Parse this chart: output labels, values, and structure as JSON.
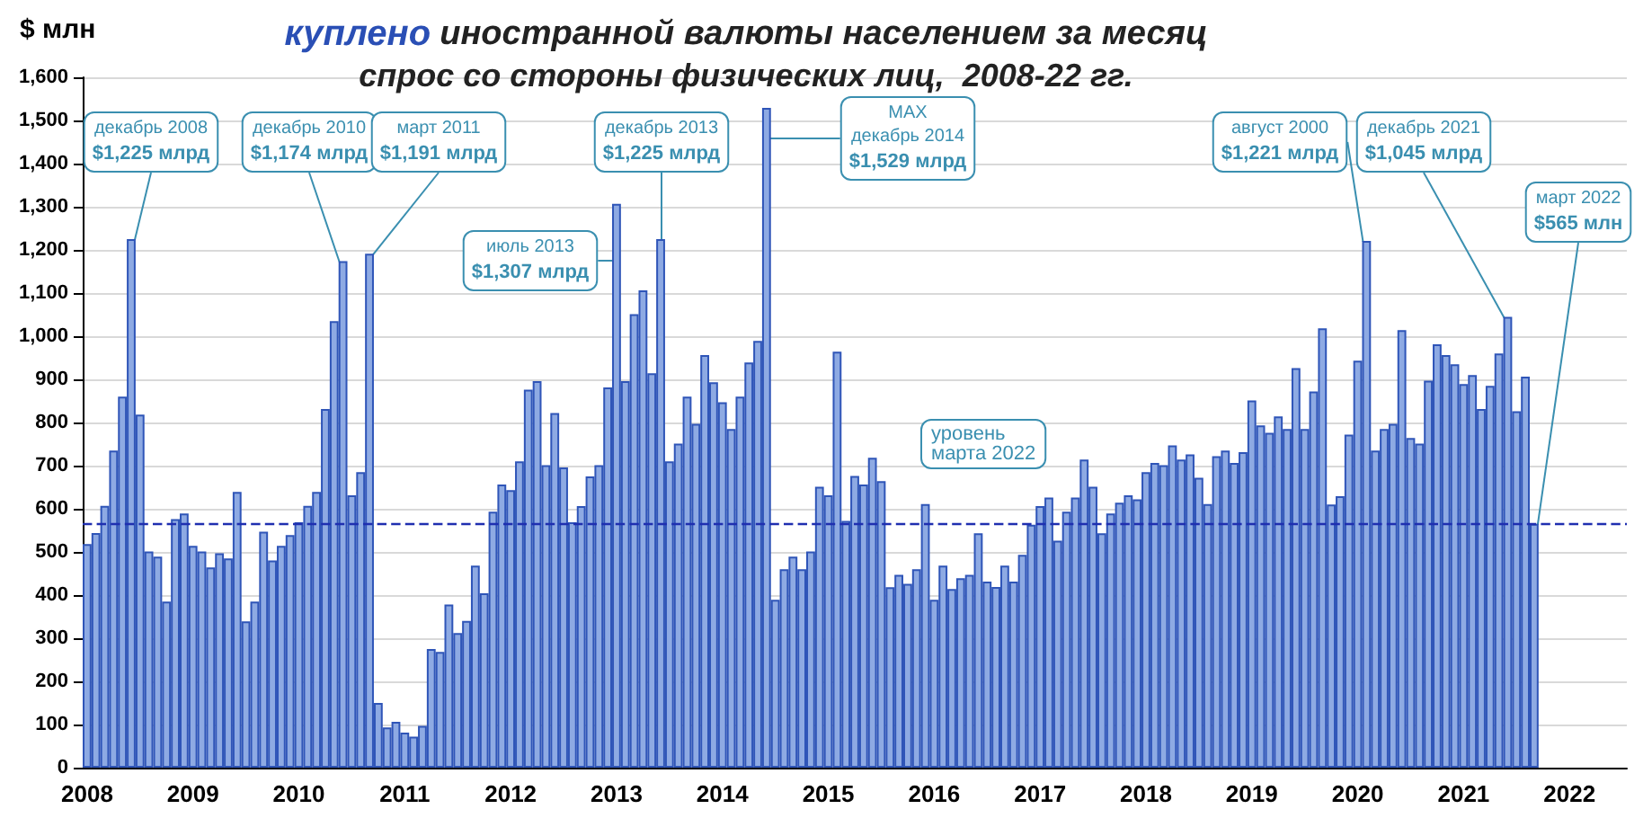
{
  "chart_data": {
    "type": "bar",
    "title": "куплено иностранной валюты населением за месяц",
    "subtitle": "спрос со стороны физических лиц,  2008-22 гг.",
    "ylabel": "$ млн",
    "categories": [
      "2008",
      null,
      null,
      null,
      null,
      null,
      null,
      null,
      null,
      null,
      null,
      null,
      "2009",
      null,
      null,
      null,
      null,
      null,
      null,
      null,
      null,
      null,
      null,
      null,
      "2010",
      null,
      null,
      null,
      null,
      null,
      null,
      null,
      null,
      null,
      null,
      null,
      "2011",
      null,
      null,
      null,
      null,
      null,
      null,
      null,
      null,
      null,
      null,
      null,
      "2012",
      null,
      null,
      null,
      null,
      null,
      null,
      null,
      null,
      null,
      null,
      null,
      "2013",
      null,
      null,
      null,
      null,
      null,
      null,
      null,
      null,
      null,
      null,
      null,
      "2014",
      null,
      null,
      null,
      null,
      null,
      null,
      null,
      null,
      null,
      null,
      null,
      "2015",
      null,
      null,
      null,
      null,
      null,
      null,
      null,
      null,
      null,
      null,
      null,
      "2016",
      null,
      null,
      null,
      null,
      null,
      null,
      null,
      null,
      null,
      null,
      null,
      "2017",
      null,
      null,
      null,
      null,
      null,
      null,
      null,
      null,
      null,
      null,
      null,
      "2018",
      null,
      null,
      null,
      null,
      null,
      null,
      null,
      null,
      null,
      null,
      null,
      "2019",
      null,
      null,
      null,
      null,
      null,
      null,
      null,
      null,
      null,
      null,
      null,
      "2020",
      null,
      null,
      null,
      null,
      null,
      null,
      null,
      null,
      null,
      null,
      null,
      "2021",
      null,
      null,
      null,
      null,
      null,
      null,
      null,
      null,
      null,
      null,
      null,
      "2022",
      null,
      null,
      null,
      null,
      null,
      null
    ],
    "values": [
      518,
      544,
      607,
      735,
      860,
      1225,
      818,
      501,
      489,
      385,
      576,
      589,
      514,
      501,
      464,
      497,
      485,
      639,
      339,
      385,
      547,
      480,
      514,
      539,
      569,
      607,
      639,
      831,
      1035,
      1174,
      631,
      685,
      1191,
      150,
      93,
      106,
      81,
      72,
      97,
      275,
      268,
      378,
      312,
      340,
      468,
      404,
      593,
      656,
      643,
      710,
      876,
      896,
      701,
      822,
      696,
      569,
      606,
      675,
      701,
      881,
      1307,
      896,
      1051,
      1106,
      914,
      1225,
      710,
      751,
      860,
      797,
      956,
      893,
      847,
      785,
      860,
      939,
      989,
      1529,
      389,
      460,
      489,
      460,
      501,
      651,
      631,
      964,
      572,
      676,
      656,
      718,
      664,
      418,
      447,
      426,
      460,
      611,
      389,
      468,
      414,
      439,
      447,
      543,
      431,
      419,
      468,
      431,
      493,
      563,
      606,
      626,
      526,
      593,
      626,
      714,
      651,
      543,
      589,
      614,
      631,
      622,
      685,
      706,
      701,
      747,
      714,
      726,
      672,
      611,
      722,
      735,
      706,
      731,
      851,
      793,
      776,
      814,
      785,
      926,
      785,
      872,
      1018,
      610,
      629,
      772,
      943,
      1221,
      735,
      785,
      797,
      1014,
      764,
      751,
      897,
      981,
      956,
      935,
      889,
      910,
      831,
      885,
      960,
      1045,
      826,
      906,
      565,
      null,
      null,
      null,
      null,
      null,
      null,
      null,
      null,
      null,
      null
    ],
    "value_labels": [
      null,
      null,
      null,
      null,
      null,
      "декабрь 2008\n$1,225 млрд",
      null,
      null,
      null,
      null,
      null,
      null,
      null,
      null,
      null,
      null,
      null,
      null,
      null,
      null,
      null,
      null,
      null,
      null,
      null,
      null,
      null,
      null,
      null,
      "декабрь 2010\n$1,174 млрд",
      null,
      null,
      "март 2011\n$1,191 млрд",
      null,
      null,
      null,
      null,
      null,
      null,
      null,
      null,
      null,
      null,
      null,
      null,
      null,
      null,
      null,
      null,
      null,
      null,
      null,
      null,
      null,
      null,
      null,
      null,
      null,
      null,
      null,
      "июль 2013\n$1,307 млрд",
      null,
      null,
      null,
      null,
      "декабрь 2013\n$1,225 млрд",
      null,
      null,
      null,
      null,
      null,
      null,
      null,
      null,
      null,
      null,
      null,
      "MAX\nдекабрь 2014\n$1,529 млрд",
      null,
      null,
      null,
      null,
      null,
      null,
      null,
      null,
      null,
      null,
      null,
      null,
      null,
      null,
      null,
      null,
      null,
      null,
      null,
      null,
      null,
      null,
      null,
      null,
      null,
      null,
      null,
      null,
      null,
      null,
      null,
      null,
      null,
      null,
      null,
      null,
      null,
      null,
      null,
      null,
      null,
      null,
      null,
      null,
      null,
      null,
      null,
      null,
      null,
      null,
      null,
      null,
      null,
      null,
      null,
      null,
      null,
      null,
      null,
      null,
      null,
      null,
      null,
      null,
      null,
      null,
      null,
      "август 2000\n$1,221 млрд",
      null,
      null,
      null,
      null,
      null,
      null,
      null,
      null,
      null,
      null,
      null,
      null,
      null,
      null,
      null,
      "декабрь 2021\n$1,045 млрд",
      null,
      null,
      "март 2022\n$565 млн",
      null,
      null,
      null,
      null,
      null,
      null,
      null,
      null,
      null,
      null
    ],
    "color": "#8eaae3",
    "ylim": [
      0,
      1600
    ],
    "yticks": [
      0,
      100,
      200,
      300,
      400,
      500,
      600,
      700,
      800,
      900,
      {
        "value": 1000,
        "label": "1,000"
      },
      {
        "value": 1100,
        "label": "1,100"
      },
      {
        "value": 1200,
        "label": "1,200"
      },
      {
        "value": 1300,
        "label": "1,300"
      },
      {
        "value": 1400,
        "label": "1,400"
      },
      {
        "value": 1500,
        "label": "1,500"
      },
      {
        "value": 1600,
        "label": "1,600"
      }
    ],
    "grid": "y",
    "ref_lines": [
      {
        "axis": "y",
        "value": 565,
        "label": "уровень\nмарта 2022",
        "color": "#1f2fb0",
        "line_style": "dashed"
      }
    ]
  }
}
